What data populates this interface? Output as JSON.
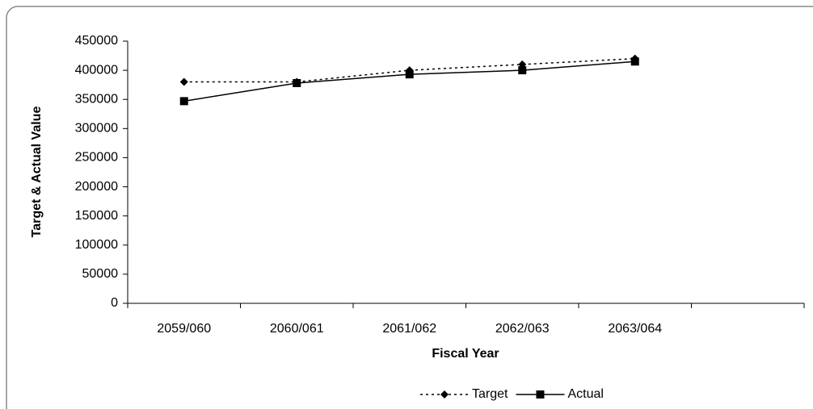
{
  "chart_data": {
    "type": "line",
    "x_label": "Fiscal Year",
    "y_label": "Target & Actual Value",
    "categories": [
      "2059/060",
      "2060/061",
      "2061/062",
      "2062/063",
      "2063/064",
      null
    ],
    "series": [
      {
        "name": "Target",
        "color": "#000000",
        "line_style": "dotted",
        "marker": "diamond",
        "values": [
          380000,
          380000,
          400000,
          410000,
          420000,
          null
        ]
      },
      {
        "name": "Actual",
        "color": "#000000",
        "line_style": "solid",
        "marker": "square",
        "values": [
          347000,
          378000,
          393000,
          400000,
          415000,
          null
        ]
      }
    ],
    "ylim": [
      0,
      450000
    ],
    "yticks": [
      0,
      50000,
      100000,
      150000,
      200000,
      250000,
      300000,
      350000,
      400000,
      450000
    ],
    "legend": "bottom"
  }
}
